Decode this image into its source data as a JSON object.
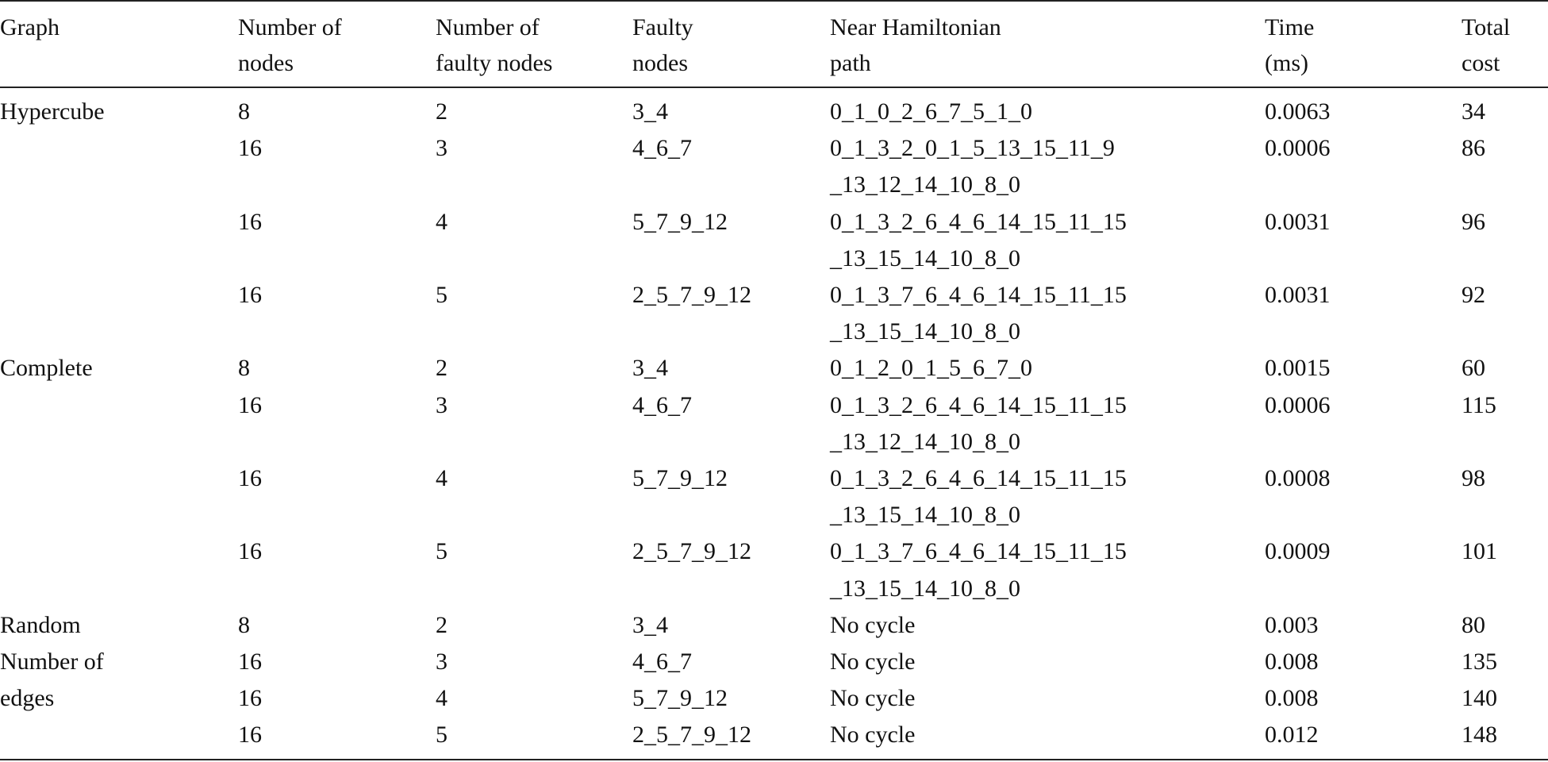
{
  "table": {
    "header": [
      [
        "Graph"
      ],
      [
        "Number of",
        "nodes"
      ],
      [
        "Number of",
        "faulty nodes"
      ],
      [
        "Faulty",
        "nodes"
      ],
      [
        "Near Hamiltonian",
        "path"
      ],
      [
        "Time",
        "(ms)"
      ],
      [
        "Total",
        "cost"
      ]
    ],
    "groups": [
      {
        "graph": [
          "Hypercube"
        ],
        "rows": [
          [
            [
              "8"
            ],
            [
              "2"
            ],
            [
              "3_4"
            ],
            [
              "0_1_0_2_6_7_5_1_0"
            ],
            [
              "0.0063"
            ],
            [
              "34"
            ]
          ],
          [
            [
              "16"
            ],
            [
              "3"
            ],
            [
              "4_6_7"
            ],
            [
              "0_1_3_2_0_1_5_13_15_11_9",
              "_13_12_14_10_8_0"
            ],
            [
              "0.0006"
            ],
            [
              "86"
            ]
          ],
          [
            [
              "16"
            ],
            [
              "4"
            ],
            [
              "5_7_9_12"
            ],
            [
              "0_1_3_2_6_4_6_14_15_11_15",
              "_13_15_14_10_8_0"
            ],
            [
              "0.0031"
            ],
            [
              "96"
            ]
          ],
          [
            [
              "16"
            ],
            [
              "5"
            ],
            [
              "2_5_7_9_12"
            ],
            [
              "0_1_3_7_6_4_6_14_15_11_15",
              "_13_15_14_10_8_0"
            ],
            [
              "0.0031"
            ],
            [
              "92"
            ]
          ]
        ]
      },
      {
        "graph": [
          "Complete"
        ],
        "rows": [
          [
            [
              "8"
            ],
            [
              "2"
            ],
            [
              "3_4"
            ],
            [
              "0_1_2_0_1_5_6_7_0"
            ],
            [
              "0.0015"
            ],
            [
              "60"
            ]
          ],
          [
            [
              "16"
            ],
            [
              "3"
            ],
            [
              "4_6_7"
            ],
            [
              "0_1_3_2_6_4_6_14_15_11_15",
              "_13_12_14_10_8_0"
            ],
            [
              "0.0006"
            ],
            [
              "115"
            ]
          ],
          [
            [
              "16"
            ],
            [
              "4"
            ],
            [
              "5_7_9_12"
            ],
            [
              "0_1_3_2_6_4_6_14_15_11_15",
              "_13_15_14_10_8_0"
            ],
            [
              "0.0008"
            ],
            [
              "98"
            ]
          ],
          [
            [
              "16"
            ],
            [
              "5"
            ],
            [
              "2_5_7_9_12"
            ],
            [
              "0_1_3_7_6_4_6_14_15_11_15",
              "_13_15_14_10_8_0"
            ],
            [
              "0.0009"
            ],
            [
              "101"
            ]
          ]
        ]
      },
      {
        "graph": [
          "Random",
          "Number of",
          "edges"
        ],
        "rows": [
          [
            [
              "8"
            ],
            [
              "2"
            ],
            [
              "3_4"
            ],
            [
              "No cycle"
            ],
            [
              "0.003"
            ],
            [
              "80"
            ]
          ],
          [
            [
              "16"
            ],
            [
              "3"
            ],
            [
              "4_6_7"
            ],
            [
              "No cycle"
            ],
            [
              "0.008"
            ],
            [
              "135"
            ]
          ],
          [
            [
              "16"
            ],
            [
              "4"
            ],
            [
              "5_7_9_12"
            ],
            [
              "No cycle"
            ],
            [
              "0.008"
            ],
            [
              "140"
            ]
          ],
          [
            [
              "16"
            ],
            [
              "5"
            ],
            [
              "2_5_7_9_12"
            ],
            [
              "No cycle"
            ],
            [
              "0.012"
            ],
            [
              "148"
            ]
          ]
        ]
      }
    ]
  }
}
